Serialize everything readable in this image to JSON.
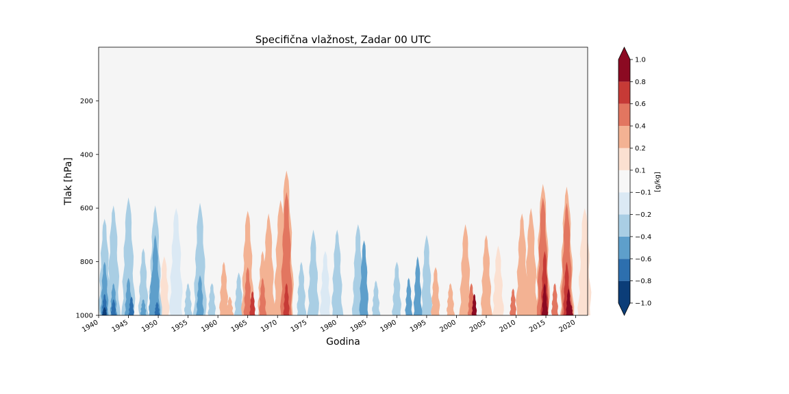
{
  "chart_data": {
    "type": "heatmap",
    "title": "Specifična vlažnost, Zadar 00 UTC",
    "xlabel": "Godina",
    "ylabel": "Tlak [hPa]",
    "xlim": [
      1940,
      2022
    ],
    "ylim": [
      0,
      1000
    ],
    "y_inverted": true,
    "x_ticks": [
      "1940",
      "1945",
      "1950",
      "1955",
      "1960",
      "1965",
      "1970",
      "1975",
      "1980",
      "1985",
      "1990",
      "1995",
      "2000",
      "2005",
      "2010",
      "2015",
      "2020"
    ],
    "y_ticks": [
      "200",
      "400",
      "600",
      "800",
      "1000"
    ],
    "colorbar": {
      "label": "[g/kg]",
      "levels": [
        -1.0,
        -0.8,
        -0.6,
        -0.4,
        -0.2,
        -0.1,
        0.1,
        0.2,
        0.4,
        0.6,
        0.8,
        1.0
      ],
      "tick_labels": [
        "−1.0",
        "−0.8",
        "−0.6",
        "−0.4",
        "−0.2",
        "−0.1",
        "0.1",
        "0.2",
        "0.4",
        "0.6",
        "0.8",
        "1.0"
      ],
      "colors": [
        "#0b3d78",
        "#2d6fae",
        "#5e9fcb",
        "#a9cee4",
        "#dbe9f4",
        "#f7f7f7",
        "#fbe0d1",
        "#f3b293",
        "#e27660",
        "#c63a36",
        "#8b0a22"
      ],
      "extend": "both"
    },
    "background": "#f5f5f5",
    "anomalies": [
      {
        "year": 1941.0,
        "top": 640,
        "value": -0.2
      },
      {
        "year": 1941.0,
        "top": 800,
        "value": -0.4
      },
      {
        "year": 1941.0,
        "top": 920,
        "value": -0.6
      },
      {
        "year": 1941.0,
        "top": 970,
        "value": -0.8
      },
      {
        "year": 1942.5,
        "top": 590,
        "value": -0.2
      },
      {
        "year": 1942.5,
        "top": 880,
        "value": -0.4
      },
      {
        "year": 1942.5,
        "top": 940,
        "value": -0.6
      },
      {
        "year": 1945.0,
        "top": 560,
        "value": -0.2
      },
      {
        "year": 1945.0,
        "top": 860,
        "value": -0.4
      },
      {
        "year": 1945.5,
        "top": 930,
        "value": -0.6
      },
      {
        "year": 1947.5,
        "top": 750,
        "value": -0.2
      },
      {
        "year": 1947.5,
        "top": 940,
        "value": -0.4
      },
      {
        "year": 1949.5,
        "top": 590,
        "value": -0.2
      },
      {
        "year": 1949.5,
        "top": 700,
        "value": -0.4
      },
      {
        "year": 1949.0,
        "top": 850,
        "value": -0.4
      },
      {
        "year": 1949.8,
        "top": 950,
        "value": -0.6
      },
      {
        "year": 1953.0,
        "top": 600,
        "value": -0.1
      },
      {
        "year": 1951.0,
        "top": 780,
        "value": 0.1
      },
      {
        "year": 1957.0,
        "top": 580,
        "value": -0.2
      },
      {
        "year": 1957.0,
        "top": 850,
        "value": -0.4
      },
      {
        "year": 1955.0,
        "top": 880,
        "value": -0.2
      },
      {
        "year": 1959.0,
        "top": 880,
        "value": -0.2
      },
      {
        "year": 1961.0,
        "top": 800,
        "value": 0.2
      },
      {
        "year": 1962.0,
        "top": 930,
        "value": 0.2
      },
      {
        "year": 1963.5,
        "top": 840,
        "value": -0.2
      },
      {
        "year": 1965.0,
        "top": 610,
        "value": 0.2
      },
      {
        "year": 1965.0,
        "top": 820,
        "value": 0.4
      },
      {
        "year": 1965.8,
        "top": 910,
        "value": 0.6
      },
      {
        "year": 1967.5,
        "top": 760,
        "value": 0.2
      },
      {
        "year": 1967.5,
        "top": 860,
        "value": 0.4
      },
      {
        "year": 1968.5,
        "top": 620,
        "value": 0.2
      },
      {
        "year": 1970.5,
        "top": 570,
        "value": 0.2
      },
      {
        "year": 1971.5,
        "top": 460,
        "value": 0.2
      },
      {
        "year": 1971.5,
        "top": 540,
        "value": 0.4
      },
      {
        "year": 1971.5,
        "top": 880,
        "value": 0.6
      },
      {
        "year": 1974.0,
        "top": 800,
        "value": -0.2
      },
      {
        "year": 1976.0,
        "top": 680,
        "value": -0.2
      },
      {
        "year": 1978.0,
        "top": 760,
        "value": -0.1
      },
      {
        "year": 1980.0,
        "top": 680,
        "value": -0.2
      },
      {
        "year": 1983.5,
        "top": 660,
        "value": -0.2
      },
      {
        "year": 1984.5,
        "top": 720,
        "value": -0.4
      },
      {
        "year": 1986.5,
        "top": 870,
        "value": -0.2
      },
      {
        "year": 1990.0,
        "top": 800,
        "value": -0.2
      },
      {
        "year": 1992.0,
        "top": 860,
        "value": -0.4
      },
      {
        "year": 1993.5,
        "top": 780,
        "value": -0.4
      },
      {
        "year": 1995.0,
        "top": 700,
        "value": -0.2
      },
      {
        "year": 1996.5,
        "top": 820,
        "value": 0.2
      },
      {
        "year": 1999.0,
        "top": 880,
        "value": 0.2
      },
      {
        "year": 2001.5,
        "top": 660,
        "value": 0.2
      },
      {
        "year": 2002.5,
        "top": 880,
        "value": 0.4
      },
      {
        "year": 2003.0,
        "top": 920,
        "value": 0.8
      },
      {
        "year": 2005.0,
        "top": 700,
        "value": 0.2
      },
      {
        "year": 2007.0,
        "top": 740,
        "value": 0.1
      },
      {
        "year": 2009.5,
        "top": 900,
        "value": 0.4
      },
      {
        "year": 2011.0,
        "top": 620,
        "value": 0.2
      },
      {
        "year": 2012.5,
        "top": 600,
        "value": 0.2
      },
      {
        "year": 2014.5,
        "top": 510,
        "value": 0.2
      },
      {
        "year": 2014.5,
        "top": 560,
        "value": 0.4
      },
      {
        "year": 2014.8,
        "top": 760,
        "value": 0.6
      },
      {
        "year": 2014.8,
        "top": 880,
        "value": 0.8
      },
      {
        "year": 2015.0,
        "top": 950,
        "value": 1.0
      },
      {
        "year": 2016.5,
        "top": 880,
        "value": 0.4
      },
      {
        "year": 2018.5,
        "top": 520,
        "value": 0.2
      },
      {
        "year": 2018.5,
        "top": 580,
        "value": 0.4
      },
      {
        "year": 2018.5,
        "top": 800,
        "value": 0.6
      },
      {
        "year": 2018.8,
        "top": 900,
        "value": 0.8
      },
      {
        "year": 2019.2,
        "top": 960,
        "value": 1.0
      },
      {
        "year": 2021.5,
        "top": 600,
        "value": 0.1
      }
    ]
  }
}
